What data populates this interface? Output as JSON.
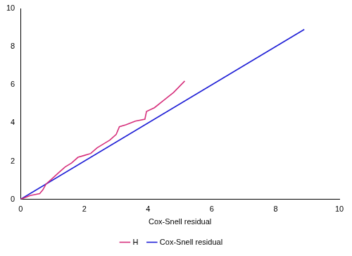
{
  "chart_data": {
    "type": "line",
    "x_label": "Cox-Snell residual",
    "xlim": [
      0,
      10
    ],
    "xticks": [
      0,
      2,
      4,
      6,
      8,
      10
    ],
    "ylim": [
      0,
      10
    ],
    "yticks": [
      0,
      2,
      4,
      6,
      8,
      10
    ],
    "grid": false,
    "legend": "bottom",
    "series": [
      {
        "name": "H",
        "color": "#d6307c",
        "line_style": "solid",
        "x": [
          0,
          0.3,
          0.6,
          0.7,
          0.8,
          1.0,
          1.2,
          1.4,
          1.6,
          1.8,
          2.0,
          2.2,
          2.4,
          2.6,
          2.8,
          3.0,
          3.1,
          3.3,
          3.6,
          3.9,
          3.95,
          4.2,
          4.5,
          4.8,
          5.15
        ],
        "values": [
          0,
          0.2,
          0.3,
          0.5,
          0.8,
          1.1,
          1.4,
          1.7,
          1.9,
          2.2,
          2.3,
          2.4,
          2.7,
          2.9,
          3.1,
          3.4,
          3.8,
          3.9,
          4.1,
          4.2,
          4.6,
          4.8,
          5.2,
          5.6,
          6.2
        ]
      },
      {
        "name": "Cox-Snell residual",
        "color": "#1f1fd6",
        "line_style": "solid",
        "x": [
          0,
          8.9
        ],
        "values": [
          0,
          8.9
        ]
      }
    ]
  }
}
